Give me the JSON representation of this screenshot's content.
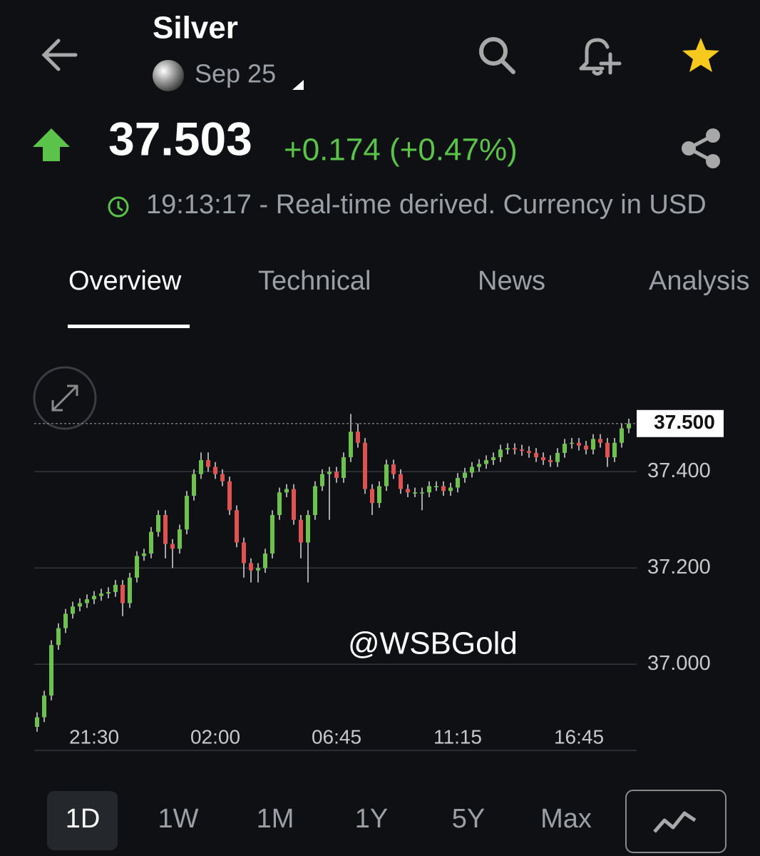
{
  "header": {
    "title": "Silver",
    "contract": "Sep 25",
    "price": "37.503",
    "change": "+0.174 (+0.47%)",
    "timestamp": "19:13:17 - Real-time derived. Currency in USD"
  },
  "tabs": [
    "Overview",
    "Technical",
    "News",
    "Analysis"
  ],
  "chart_data": {
    "type": "candlestick",
    "colors": {
      "up": "#6cc24a",
      "down": "#e0524f"
    },
    "categories": [
      null,
      null,
      null,
      null,
      null,
      null,
      null,
      null,
      "21:30",
      null,
      null,
      null,
      null,
      null,
      null,
      null,
      null,
      null,
      null,
      null,
      null,
      null,
      null,
      null,
      null,
      "02:00",
      null,
      null,
      null,
      null,
      null,
      null,
      null,
      null,
      null,
      null,
      null,
      null,
      null,
      null,
      null,
      null,
      "06:45",
      null,
      null,
      null,
      null,
      null,
      null,
      null,
      null,
      null,
      null,
      null,
      null,
      null,
      null,
      null,
      null,
      "11:15",
      null,
      null,
      null,
      null,
      null,
      null,
      null,
      null,
      null,
      null,
      null,
      null,
      null,
      null,
      null,
      null,
      "16:45",
      null,
      null,
      null,
      null,
      null,
      null,
      null
    ],
    "open": [
      36.87,
      36.89,
      36.935,
      37.04,
      37.075,
      37.105,
      37.12,
      37.127,
      37.135,
      37.142,
      37.147,
      37.15,
      37.165,
      37.127,
      37.18,
      37.225,
      37.23,
      37.275,
      37.31,
      37.25,
      37.24,
      37.28,
      37.35,
      37.395,
      37.424,
      37.41,
      37.395,
      37.38,
      37.32,
      37.253,
      37.21,
      37.195,
      37.2,
      37.23,
      37.31,
      37.357,
      37.364,
      37.3,
      37.253,
      37.31,
      37.37,
      37.395,
      37.4,
      37.387,
      37.43,
      37.483,
      37.46,
      37.364,
      37.335,
      37.37,
      37.415,
      37.395,
      37.364,
      37.357,
      37.357,
      37.357,
      37.37,
      37.37,
      37.36,
      37.367,
      37.387,
      37.398,
      37.41,
      37.416,
      37.424,
      37.43,
      37.446,
      37.449,
      37.446,
      37.443,
      37.439,
      37.43,
      37.424,
      37.42,
      37.439,
      37.458,
      37.46,
      37.454,
      37.446,
      37.468,
      37.46,
      37.43,
      37.46,
      37.49
    ],
    "high": [
      36.9,
      36.945,
      37.05,
      37.085,
      37.115,
      37.13,
      37.137,
      37.145,
      37.152,
      37.157,
      37.16,
      37.175,
      37.175,
      37.19,
      37.235,
      37.24,
      37.285,
      37.32,
      37.32,
      37.26,
      37.29,
      37.36,
      37.405,
      37.44,
      37.44,
      37.42,
      37.405,
      37.39,
      37.33,
      37.263,
      37.22,
      37.21,
      37.24,
      37.32,
      37.367,
      37.374,
      37.374,
      37.31,
      37.32,
      37.38,
      37.405,
      37.41,
      37.41,
      37.44,
      37.52,
      37.5,
      37.47,
      37.374,
      37.38,
      37.425,
      37.425,
      37.405,
      37.374,
      37.367,
      37.367,
      37.38,
      37.38,
      37.38,
      37.377,
      37.397,
      37.408,
      37.42,
      37.426,
      37.434,
      37.44,
      37.456,
      37.459,
      37.459,
      37.456,
      37.453,
      37.449,
      37.44,
      37.434,
      37.449,
      37.468,
      37.47,
      37.47,
      37.464,
      37.478,
      37.478,
      37.47,
      37.47,
      37.5,
      37.51
    ],
    "low": [
      36.86,
      36.88,
      36.925,
      37.03,
      37.065,
      37.095,
      37.11,
      37.117,
      37.125,
      37.132,
      37.137,
      37.14,
      37.1,
      37.117,
      37.17,
      37.215,
      37.22,
      37.265,
      37.22,
      37.2,
      37.23,
      37.27,
      37.34,
      37.385,
      37.4,
      37.385,
      37.37,
      37.31,
      37.243,
      37.18,
      37.17,
      37.17,
      37.19,
      37.22,
      37.3,
      37.347,
      37.29,
      37.22,
      37.17,
      37.3,
      37.36,
      37.3,
      37.377,
      37.377,
      37.42,
      37.45,
      37.354,
      37.31,
      37.325,
      37.36,
      37.385,
      37.354,
      37.347,
      37.347,
      37.32,
      37.347,
      37.36,
      37.35,
      37.35,
      37.357,
      37.377,
      37.388,
      37.4,
      37.406,
      37.414,
      37.42,
      37.436,
      37.436,
      37.433,
      37.429,
      37.42,
      37.414,
      37.41,
      37.41,
      37.429,
      37.448,
      37.444,
      37.436,
      37.436,
      37.45,
      37.41,
      37.42,
      37.45,
      37.48
    ],
    "close": [
      36.89,
      36.935,
      37.04,
      37.075,
      37.105,
      37.12,
      37.127,
      37.135,
      37.142,
      37.147,
      37.15,
      37.165,
      37.127,
      37.18,
      37.225,
      37.23,
      37.275,
      37.31,
      37.25,
      37.24,
      37.28,
      37.35,
      37.395,
      37.424,
      37.41,
      37.395,
      37.38,
      37.32,
      37.253,
      37.21,
      37.195,
      37.2,
      37.23,
      37.31,
      37.357,
      37.364,
      37.3,
      37.253,
      37.31,
      37.37,
      37.395,
      37.4,
      37.387,
      37.43,
      37.483,
      37.46,
      37.364,
      37.335,
      37.37,
      37.415,
      37.395,
      37.364,
      37.357,
      37.357,
      37.357,
      37.37,
      37.37,
      37.36,
      37.367,
      37.387,
      37.398,
      37.41,
      37.416,
      37.424,
      37.43,
      37.446,
      37.449,
      37.446,
      37.443,
      37.439,
      37.43,
      37.424,
      37.42,
      37.439,
      37.458,
      37.46,
      37.454,
      37.446,
      37.468,
      37.46,
      37.43,
      37.46,
      37.49,
      37.5
    ],
    "ylim": [
      36.82,
      37.55
    ],
    "yticks": [
      {
        "value": 37.0,
        "label": "37.000"
      },
      {
        "value": 37.2,
        "label": "37.200"
      },
      {
        "value": 37.4,
        "label": "37.400"
      }
    ],
    "grid": true,
    "price_line": {
      "value": 37.5,
      "label": "37.500"
    },
    "watermark": "@WSBGold"
  },
  "periods": [
    "1D",
    "1W",
    "1M",
    "1Y",
    "5Y",
    "Max"
  ]
}
